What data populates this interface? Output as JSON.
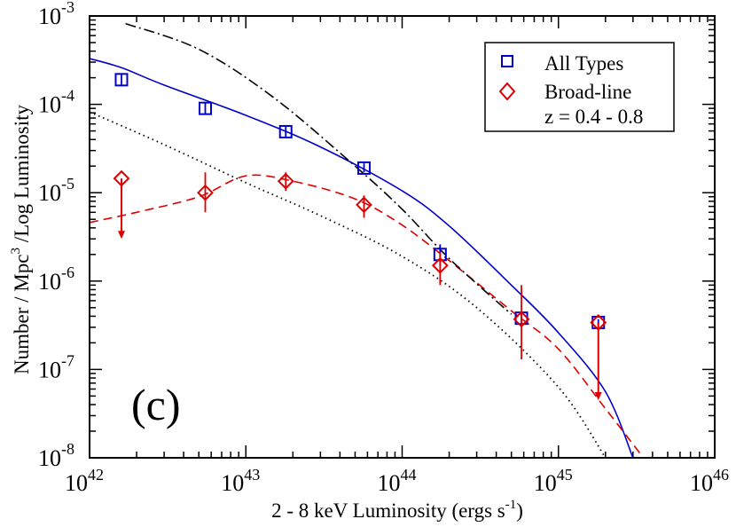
{
  "chart_data": {
    "type": "scatter",
    "panel_label": "(c)",
    "x_axis": {
      "label_prefix": "2 - 8 keV Luminosity  (ergs s",
      "label_unit_sup": "-1",
      "label_suffix": ")",
      "scale": "log",
      "range": [
        1e+42,
        1e+46
      ],
      "tick_base": "10",
      "tick_exponents": [
        "42",
        "43",
        "44",
        "45",
        "46"
      ]
    },
    "y_axis": {
      "label_prefix": "Number / Mpc",
      "label_sup": "3",
      "label_suffix": " /Log Luminosity",
      "scale": "log",
      "range": [
        1e-08,
        0.001
      ],
      "tick_base": "10",
      "tick_exponents": [
        "-8",
        "-7",
        "-6",
        "-5",
        "-4",
        "-3"
      ]
    },
    "legend": {
      "position": "top-right",
      "entries": [
        {
          "label": "All Types",
          "marker": "square",
          "color": "#0000cc"
        },
        {
          "label": "Broad-line",
          "marker": "diamond",
          "color": "#dd0000"
        }
      ],
      "note": "z = 0.4 - 0.8"
    },
    "series": [
      {
        "name": "All Types",
        "kind": "points",
        "marker": "square",
        "color": "#0000cc",
        "points": [
          {
            "x": 1.6e+42,
            "y": 0.00019,
            "ylo": 0.00016,
            "yhi": 0.00022
          },
          {
            "x": 5.5e+42,
            "y": 9e-05,
            "ylo": 7.7e-05,
            "yhi": 0.000105
          },
          {
            "x": 1.8e+43,
            "y": 4.9e-05,
            "ylo": 4.3e-05,
            "yhi": 5.6e-05
          },
          {
            "x": 5.7e+43,
            "y": 1.9e-05,
            "ylo": 1.7e-05,
            "yhi": 2.15e-05
          },
          {
            "x": 1.75e+44,
            "y": 2e-06,
            "ylo": 1.5e-06,
            "yhi": 2.6e-06
          },
          {
            "x": 5.8e+44,
            "y": 3.8e-07,
            "ylo": 3.4e-07,
            "yhi": 4.3e-07
          },
          {
            "x": 1.8e+45,
            "y": 3.4e-07,
            "ylo": 3.1e-07,
            "yhi": 3.7e-07
          }
        ]
      },
      {
        "name": "Broad-line",
        "kind": "points",
        "marker": "diamond",
        "color": "#dd0000",
        "points": [
          {
            "x": 1.6e+42,
            "y": 1.45e-05,
            "upper_limit": true,
            "arrow_to": 3e-06
          },
          {
            "x": 5.5e+42,
            "y": 1e-05,
            "ylo": 6e-06,
            "yhi": 1.7e-05
          },
          {
            "x": 1.8e+43,
            "y": 1.35e-05,
            "ylo": 1.05e-05,
            "yhi": 1.7e-05
          },
          {
            "x": 5.7e+43,
            "y": 7.3e-06,
            "ylo": 5.2e-06,
            "yhi": 9.3e-06
          },
          {
            "x": 1.75e+44,
            "y": 1.5e-06,
            "ylo": 9e-07,
            "yhi": 2.1e-06
          },
          {
            "x": 5.8e+44,
            "y": 3.7e-07,
            "ylo": 1.3e-07,
            "yhi": 9e-07
          },
          {
            "x": 1.8e+45,
            "y": 3.4e-07,
            "upper_limit": true,
            "arrow_to": 4.5e-08
          }
        ]
      },
      {
        "name": "All Types model",
        "kind": "line",
        "style": "solid",
        "color": "#0000cc",
        "points": [
          [
            1e+42,
            0.00033
          ],
          [
            1.6e+42,
            0.00026
          ],
          [
            3e+42,
            0.000165
          ],
          [
            1e+43,
            7.5e-05
          ],
          [
            3e+43,
            3.3e-05
          ],
          [
            1e+44,
            1.05e-05
          ],
          [
            2e+44,
            4.2e-06
          ],
          [
            5e+44,
            9e-07
          ],
          [
            1e+45,
            2.6e-07
          ],
          [
            2e+45,
            5.6e-08
          ],
          [
            3e+45,
            1e-08
          ]
        ]
      },
      {
        "name": "Broad-line model",
        "kind": "line",
        "style": "dashed",
        "color": "#dd0000",
        "points": [
          [
            1e+42,
            4.6e-06
          ],
          [
            2e+42,
            6e-06
          ],
          [
            5e+42,
            9e-06
          ],
          [
            1e+43,
            1.55e-05
          ],
          [
            2e+43,
            1.35e-05
          ],
          [
            5e+43,
            8.5e-06
          ],
          [
            1e+44,
            4.3e-06
          ],
          [
            2e+44,
            1.7e-06
          ],
          [
            5e+44,
            4.6e-07
          ],
          [
            1e+45,
            1.7e-07
          ],
          [
            2e+45,
            3.6e-08
          ],
          [
            3.5e+45,
            1e-08
          ]
        ]
      },
      {
        "name": "Dash-dot model",
        "kind": "line",
        "style": "dashdot",
        "color": "#000000",
        "points": [
          [
            1.7e+42,
            0.00082
          ],
          [
            5e+42,
            0.00042
          ],
          [
            1.5e+43,
            0.00012
          ],
          [
            5e+43,
            2e-05
          ],
          [
            1e+44,
            6.5e-06
          ],
          [
            2e+44,
            1.8e-06
          ],
          [
            5e+44,
            4.2e-07
          ]
        ]
      },
      {
        "name": "Dotted model",
        "kind": "line",
        "style": "dotted",
        "color": "#000000",
        "points": [
          [
            1e+42,
            8.2e-05
          ],
          [
            3e+42,
            3.5e-05
          ],
          [
            1e+43,
            1.3e-05
          ],
          [
            3e+43,
            5.5e-06
          ],
          [
            1e+44,
            1.9e-06
          ],
          [
            3e+44,
            5e-07
          ],
          [
            1e+45,
            6.3e-08
          ],
          [
            2e+45,
            1e-08
          ]
        ]
      }
    ]
  }
}
